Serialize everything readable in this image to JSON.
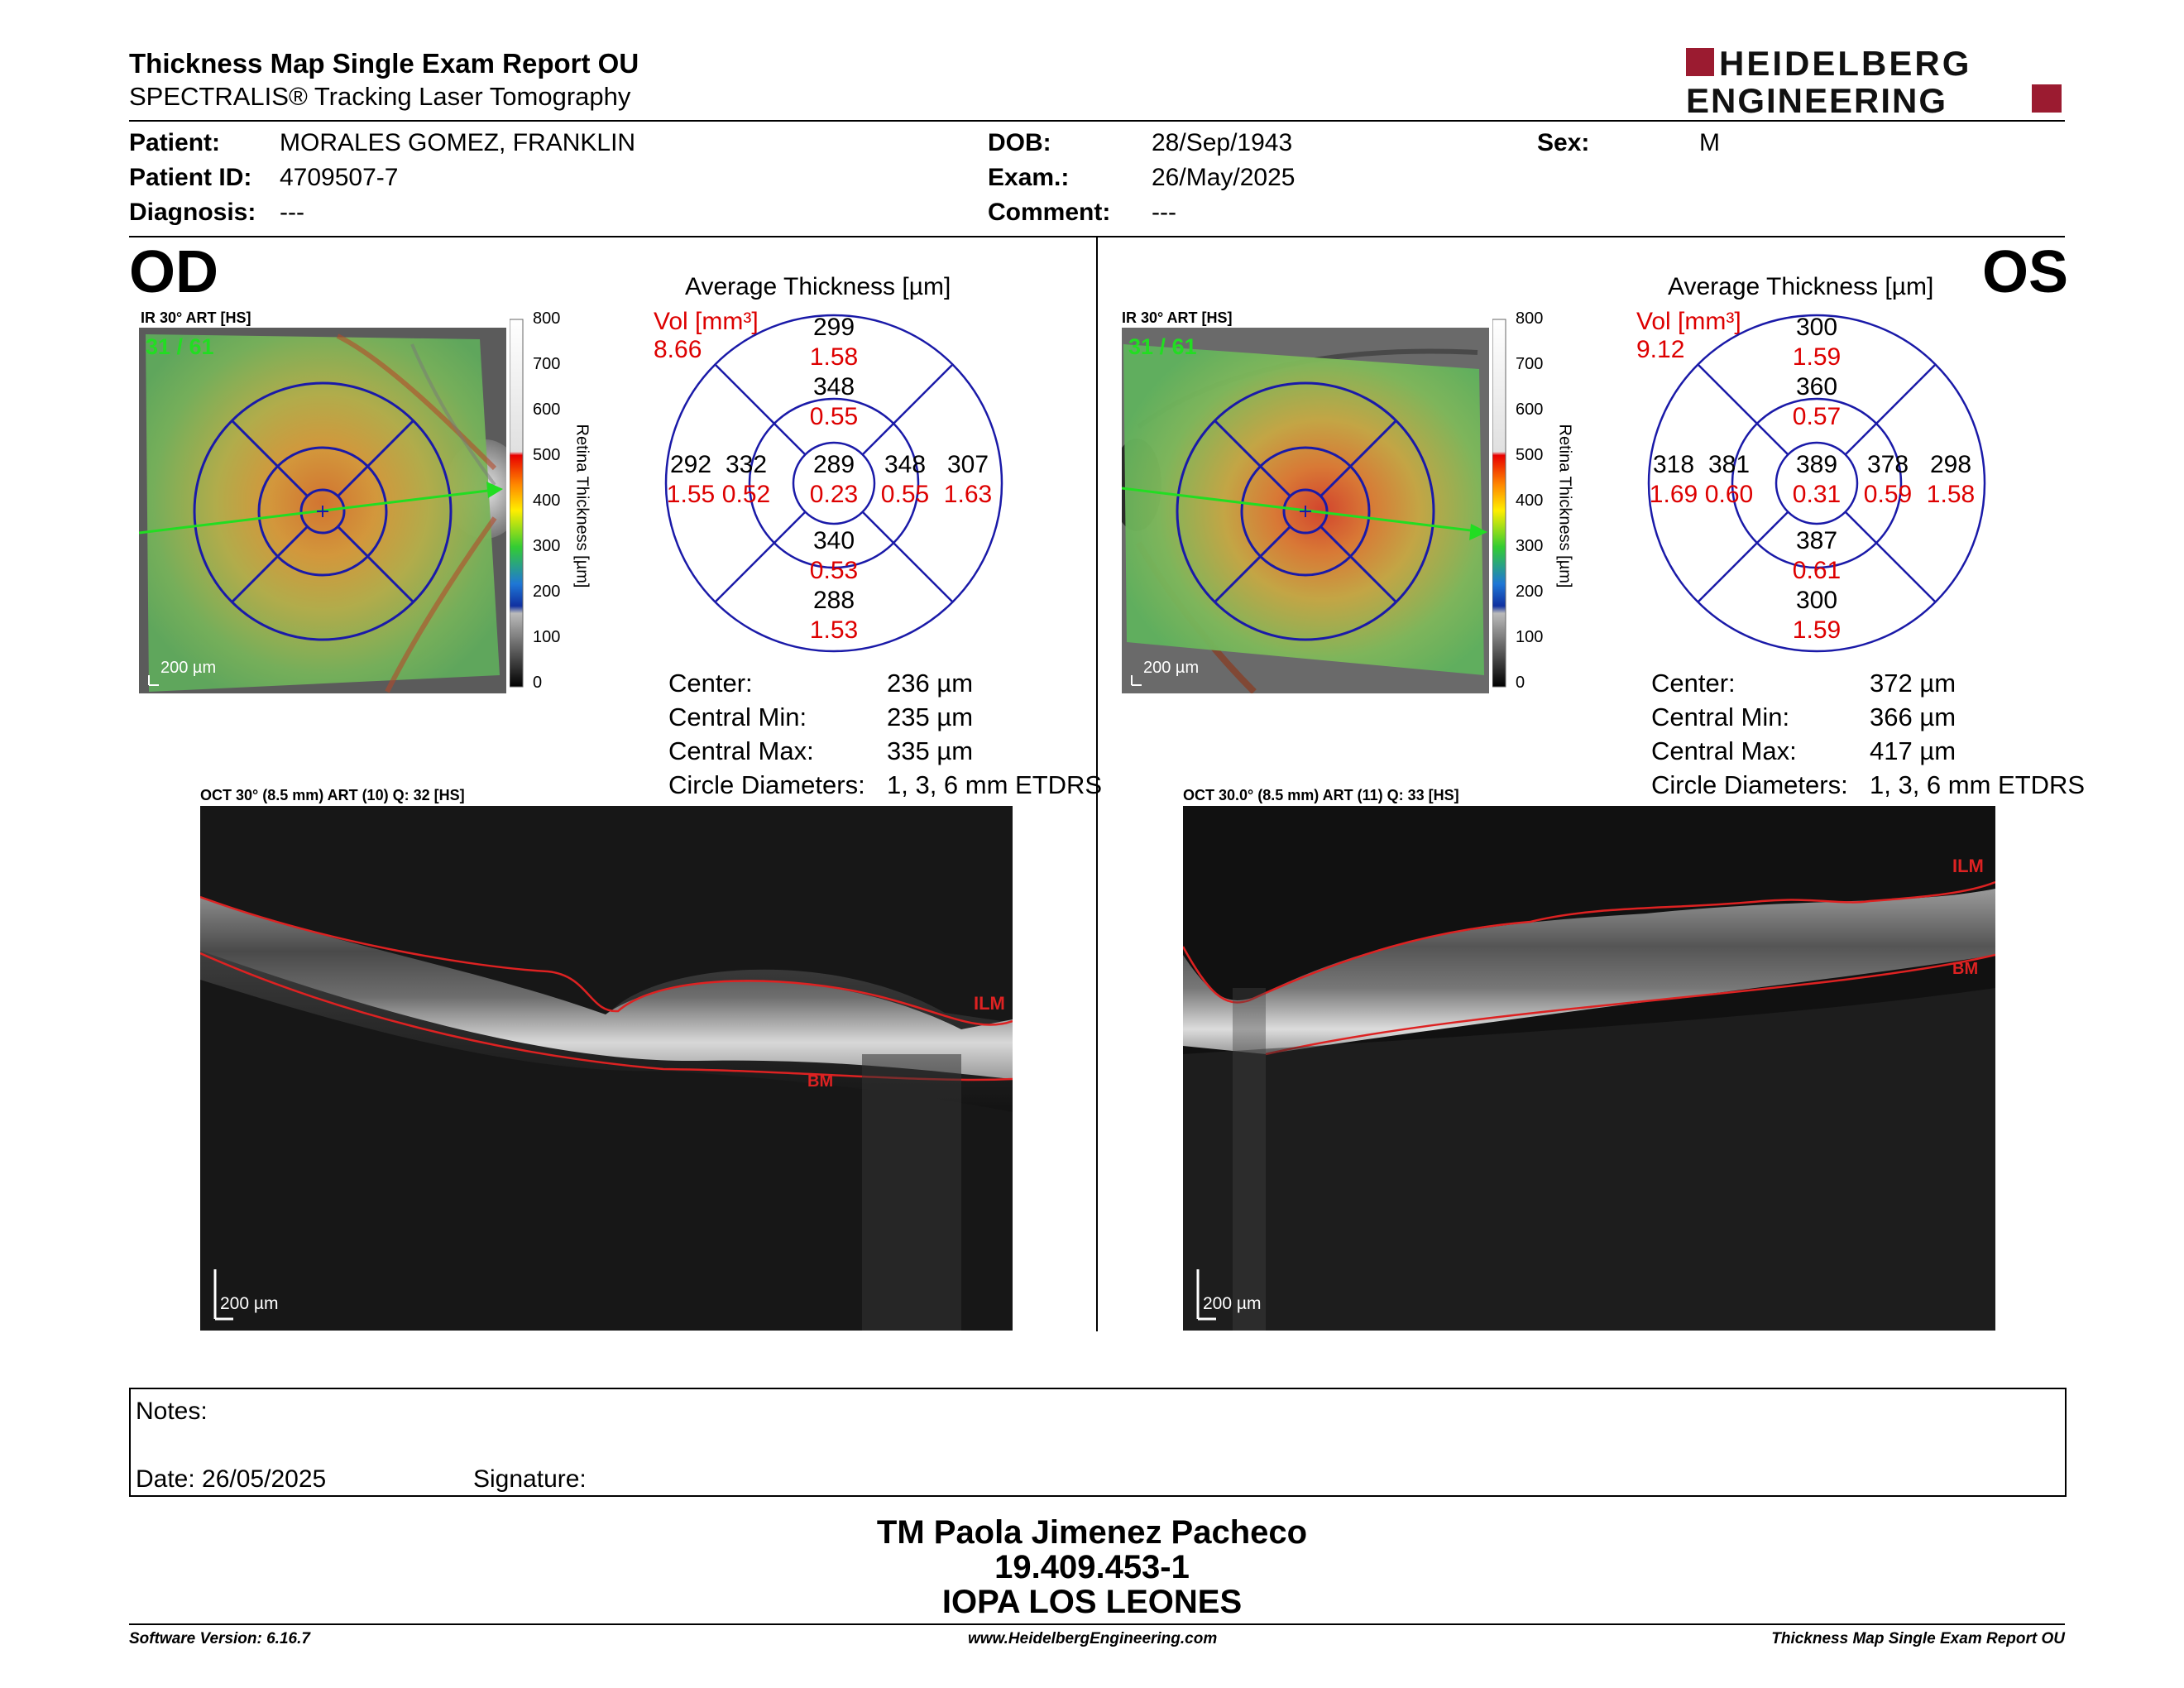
{
  "header": {
    "title": "Thickness Map Single Exam Report OU",
    "subtitle": "SPECTRALIS® Tracking Laser Tomography",
    "logo_line1": "HEIDELBERG",
    "logo_line2": "ENGINEERING"
  },
  "patient": {
    "patient_label": "Patient:",
    "patient_value": "MORALES GOMEZ, FRANKLIN",
    "id_label": "Patient ID:",
    "id_value": "4709507-7",
    "diagnosis_label": "Diagnosis:",
    "diagnosis_value": "---",
    "dob_label": "DOB:",
    "dob_value": "28/Sep/1943",
    "exam_label": "Exam.:",
    "exam_value": "26/May/2025",
    "comment_label": "Comment:",
    "comment_value": "---",
    "sex_label": "Sex:",
    "sex_value": "M"
  },
  "od": {
    "eye": "OD",
    "ir_label": "IR 30° ART [HS]",
    "frame": "31 / 61",
    "scalebar": "200 µm",
    "avg_title": "Average Thickness [µm]",
    "vol_label": "Vol [mm³]",
    "vol_value": "8.66",
    "grid": {
      "center": {
        "t": "289",
        "v": "0.23"
      },
      "inner_s": {
        "t": "348",
        "v": "0.55"
      },
      "inner_i": {
        "t": "340",
        "v": "0.53"
      },
      "inner_n": {
        "t": "348",
        "v": "0.55"
      },
      "inner_t": {
        "t": "332",
        "v": "0.52"
      },
      "outer_s": {
        "t": "299",
        "v": "1.58"
      },
      "outer_i": {
        "t": "288",
        "v": "1.53"
      },
      "outer_n": {
        "t": "307",
        "v": "1.63"
      },
      "outer_t": {
        "t": "292",
        "v": "1.55"
      }
    },
    "stats": [
      {
        "label": "Center:",
        "value": "236 µm"
      },
      {
        "label": "Central Min:",
        "value": "235 µm"
      },
      {
        "label": "Central Max:",
        "value": "335 µm"
      },
      {
        "label": "Circle Diameters:",
        "value": "1, 3, 6 mm ETDRS"
      }
    ],
    "oct_label": "OCT 30° (8.5 mm) ART (10) Q: 32 [HS]",
    "oct_scalebar": "200 µm",
    "ilm": "ILM",
    "bm": "BM"
  },
  "os": {
    "eye": "OS",
    "ir_label": "IR 30° ART [HS]",
    "frame": "31 / 61",
    "scalebar": "200 µm",
    "avg_title": "Average Thickness [µm]",
    "vol_label": "Vol [mm³]",
    "vol_value": "9.12",
    "grid": {
      "center": {
        "t": "389",
        "v": "0.31"
      },
      "inner_s": {
        "t": "360",
        "v": "0.57"
      },
      "inner_i": {
        "t": "387",
        "v": "0.61"
      },
      "inner_n": {
        "t": "381",
        "v": "0.60"
      },
      "inner_t": {
        "t": "378",
        "v": "0.59"
      },
      "outer_s": {
        "t": "300",
        "v": "1.59"
      },
      "outer_i": {
        "t": "300",
        "v": "1.59"
      },
      "outer_n": {
        "t": "318",
        "v": "1.69"
      },
      "outer_t": {
        "t": "298",
        "v": "1.58"
      }
    },
    "stats": [
      {
        "label": "Center:",
        "value": "372 µm"
      },
      {
        "label": "Central Min:",
        "value": "366 µm"
      },
      {
        "label": "Central Max:",
        "value": "417 µm"
      },
      {
        "label": "Circle Diameters:",
        "value": "1, 3, 6 mm ETDRS"
      }
    ],
    "oct_label": "OCT 30.0° (8.5 mm) ART (11) Q: 33 [HS]",
    "oct_scalebar": "200 µm",
    "ilm": "ILM",
    "bm": "BM"
  },
  "color_scale": {
    "ticks": [
      "800",
      "700",
      "600",
      "500",
      "400",
      "300",
      "200",
      "100",
      "0"
    ],
    "axis_label": "Retina Thickness [µm]"
  },
  "notes": {
    "notes_label": "Notes:",
    "date_label": "Date: 26/05/2025",
    "signature_label": "Signature:"
  },
  "signature": {
    "name": "TM Paola Jimenez Pacheco",
    "rut": "19.409.453-1",
    "institution": "IOPA LOS LEONES"
  },
  "footer": {
    "version": "Software Version: 6.16.7",
    "website": "www.HeidelbergEngineering.com",
    "report": "Thickness Map Single Exam Report OU"
  }
}
